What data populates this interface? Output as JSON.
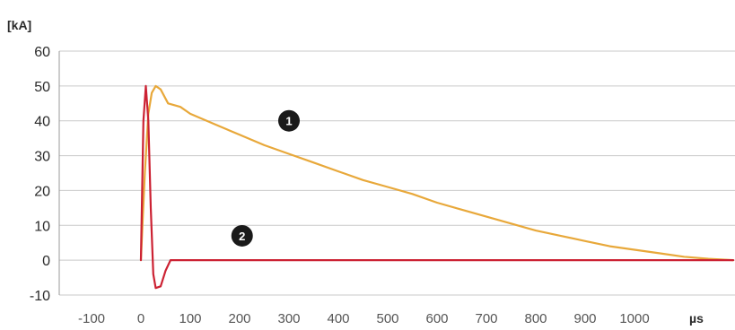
{
  "chart_data": {
    "type": "line",
    "y_unit_label": "[kA]",
    "x_unit_label": "µs",
    "xlim": [
      -100,
      1200
    ],
    "ylim": [
      -10,
      60
    ],
    "x_ticks": [
      -100,
      0,
      100,
      200,
      300,
      400,
      500,
      600,
      700,
      800,
      900,
      1000
    ],
    "y_ticks": [
      60,
      50,
      40,
      30,
      20,
      10,
      0,
      -10
    ],
    "grid": {
      "horizontal": true,
      "vertical": false
    },
    "series": [
      {
        "marker": "1",
        "color": "#e8a83a",
        "points": [
          [
            0,
            0
          ],
          [
            8,
            25
          ],
          [
            15,
            42
          ],
          [
            22,
            48
          ],
          [
            30,
            50
          ],
          [
            40,
            49
          ],
          [
            55,
            45
          ],
          [
            80,
            44
          ],
          [
            100,
            42
          ],
          [
            150,
            39
          ],
          [
            200,
            36
          ],
          [
            250,
            33
          ],
          [
            300,
            30.5
          ],
          [
            350,
            28
          ],
          [
            400,
            25.5
          ],
          [
            450,
            23
          ],
          [
            500,
            21
          ],
          [
            550,
            19
          ],
          [
            600,
            16.5
          ],
          [
            650,
            14.5
          ],
          [
            700,
            12.5
          ],
          [
            750,
            10.5
          ],
          [
            800,
            8.5
          ],
          [
            850,
            7
          ],
          [
            900,
            5.5
          ],
          [
            950,
            4
          ],
          [
            1000,
            3
          ],
          [
            1050,
            2
          ],
          [
            1100,
            1
          ],
          [
            1150,
            0.4
          ],
          [
            1200,
            0
          ]
        ]
      },
      {
        "marker": "2",
        "color": "#cc2233",
        "points": [
          [
            0,
            0
          ],
          [
            5,
            40
          ],
          [
            10,
            50
          ],
          [
            15,
            40
          ],
          [
            20,
            15
          ],
          [
            25,
            -4
          ],
          [
            30,
            -8
          ],
          [
            40,
            -7.5
          ],
          [
            50,
            -3
          ],
          [
            60,
            0
          ],
          [
            1200,
            0
          ]
        ]
      }
    ],
    "annotations": [
      {
        "text": "1",
        "x": 300,
        "y": 40
      },
      {
        "text": "2",
        "x": 205,
        "y": 7
      }
    ]
  }
}
